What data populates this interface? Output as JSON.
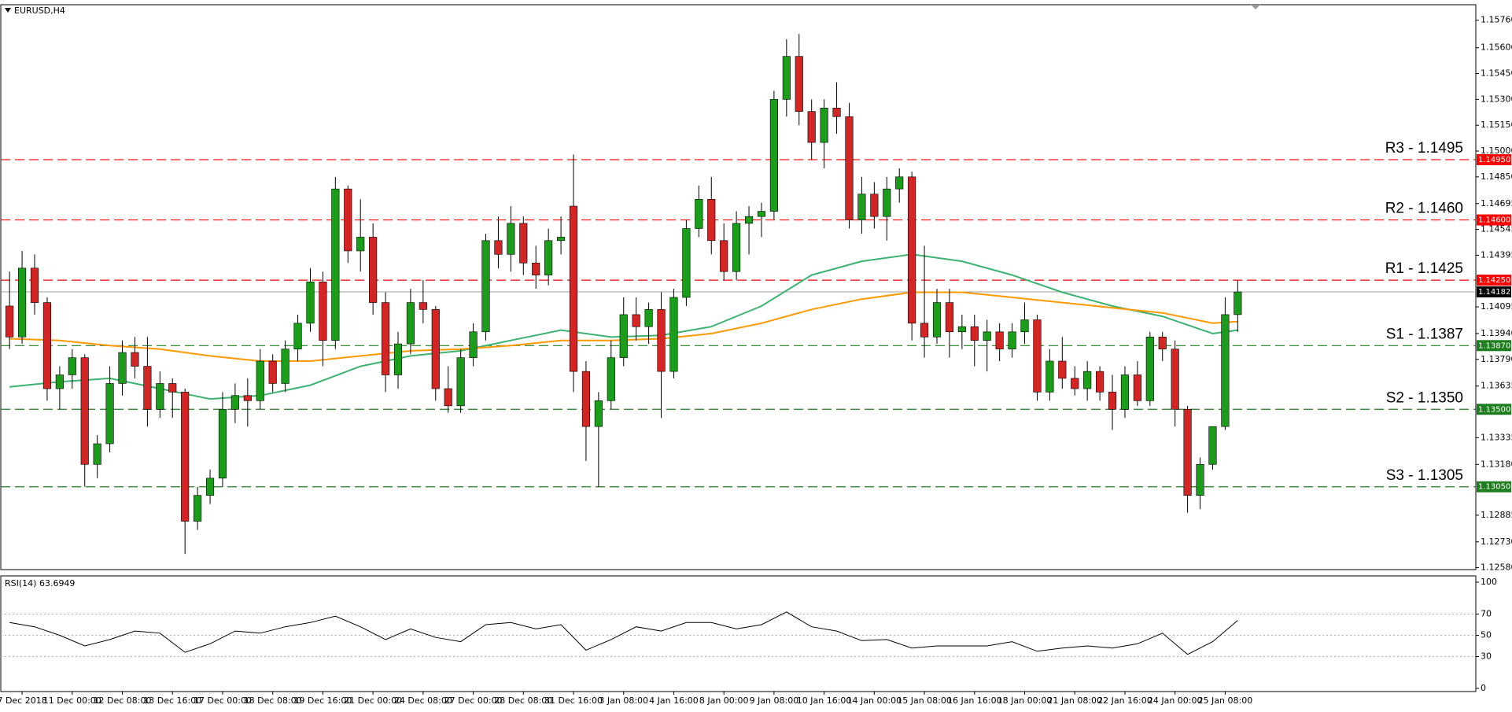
{
  "chart_data": [
    {
      "type": "candlestick",
      "title": "EURUSD,H4",
      "up_color": "#1a9e1a",
      "down_color": "#d42424",
      "wick_color": "#000000",
      "xlim": [
        -0.7,
        117
      ],
      "xticks": [
        {
          "value": 1,
          "label": "7 Dec 2018"
        },
        {
          "value": 5,
          "label": "11 Dec 00:00"
        },
        {
          "value": 9,
          "label": "12 Dec 08:00"
        },
        {
          "value": 13,
          "label": "13 Dec 16:00"
        },
        {
          "value": 17,
          "label": "17 Dec 00:00"
        },
        {
          "value": 21,
          "label": "18 Dec 08:00"
        },
        {
          "value": 25,
          "label": "19 Dec 16:00"
        },
        {
          "value": 29,
          "label": "21 Dec 00:00"
        },
        {
          "value": 33,
          "label": "24 Dec 08:00"
        },
        {
          "value": 37,
          "label": "27 Dec 00:00"
        },
        {
          "value": 41,
          "label": "28 Dec 08:00"
        },
        {
          "value": 45,
          "label": "31 Dec 16:00"
        },
        {
          "value": 49,
          "label": "3 Jan 08:00"
        },
        {
          "value": 53,
          "label": "4 Jan 16:00"
        },
        {
          "value": 57,
          "label": "8 Jan 00:00"
        },
        {
          "value": 61,
          "label": "9 Jan 08:00"
        },
        {
          "value": 65,
          "label": "10 Jan 16:00"
        },
        {
          "value": 69,
          "label": "14 Jan 00:00"
        },
        {
          "value": 73,
          "label": "15 Jan 08:00"
        },
        {
          "value": 77,
          "label": "16 Jan 16:00"
        },
        {
          "value": 81,
          "label": "18 Jan 00:00"
        },
        {
          "value": 85,
          "label": "21 Jan 08:00"
        },
        {
          "value": 89,
          "label": "22 Jan 16:00"
        },
        {
          "value": 93,
          "label": "24 Jan 00:00"
        },
        {
          "value": 97,
          "label": "25 Jan 08:00"
        }
      ],
      "ylim": [
        1.12569,
        1.1585
      ],
      "yticks": [
        {
          "value": 1.1576,
          "label": "1.15760"
        },
        {
          "value": 1.156,
          "label": "1.15600"
        },
        {
          "value": 1.1545,
          "label": "1.15450"
        },
        {
          "value": 1.153,
          "label": "1.15300"
        },
        {
          "value": 1.1515,
          "label": "1.15150"
        },
        {
          "value": 1.15,
          "label": "1.15000"
        },
        {
          "value": 1.1485,
          "label": "1.14850"
        },
        {
          "value": 1.14695,
          "label": "1.14695"
        },
        {
          "value": 1.14545,
          "label": "1.14545"
        },
        {
          "value": 1.14395,
          "label": "1.14395"
        },
        {
          "value": 1.14095,
          "label": "1.14095"
        },
        {
          "value": 1.1394,
          "label": "1.13940"
        },
        {
          "value": 1.1379,
          "label": "1.13790"
        },
        {
          "value": 1.13635,
          "label": "1.13635"
        },
        {
          "value": 1.13335,
          "label": "1.13335"
        },
        {
          "value": 1.1318,
          "label": "1.13180"
        },
        {
          "value": 1.12885,
          "label": "1.12885"
        },
        {
          "value": 1.1273,
          "label": "1.12730"
        },
        {
          "value": 1.1258,
          "label": "1.12580"
        }
      ],
      "open": [
        1.141,
        1.1392,
        1.1432,
        1.1412,
        1.1362,
        1.137,
        1.138,
        1.1318,
        1.133,
        1.1365,
        1.1383,
        1.1375,
        1.135,
        1.1365,
        1.136,
        1.1285,
        1.13,
        1.131,
        1.135,
        1.1358,
        1.1355,
        1.1378,
        1.1365,
        1.1385,
        1.14,
        1.1424,
        1.139,
        1.1478,
        1.1442,
        1.145,
        1.1412,
        1.137,
        1.1388,
        1.1412,
        1.1408,
        1.1362,
        1.1352,
        1.138,
        1.1395,
        1.1448,
        1.144,
        1.1458,
        1.1435,
        1.1428,
        1.1448,
        1.1468,
        1.1372,
        1.134,
        1.1355,
        1.138,
        1.1405,
        1.1398,
        1.1408,
        1.1372,
        1.1415,
        1.1455,
        1.1472,
        1.1448,
        1.143,
        1.1458,
        1.1462,
        1.1465,
        1.153,
        1.1555,
        1.1523,
        1.1505,
        1.1525,
        1.152,
        1.146,
        1.1475,
        1.1462,
        1.1478,
        1.1485,
        1.14,
        1.1392,
        1.1412,
        1.1395,
        1.1398,
        1.139,
        1.1395,
        1.1385,
        1.1395,
        1.1402,
        1.136,
        1.1378,
        1.1368,
        1.1362,
        1.1372,
        1.136,
        1.135,
        1.137,
        1.1355,
        1.1392,
        1.1385,
        1.135,
        1.13,
        1.1318,
        1.134,
        1.1405
      ],
      "high": [
        1.143,
        1.1442,
        1.144,
        1.1415,
        1.1375,
        1.1385,
        1.1382,
        1.1335,
        1.1375,
        1.139,
        1.1392,
        1.1392,
        1.1372,
        1.1368,
        1.1362,
        1.1305,
        1.1315,
        1.136,
        1.1365,
        1.1368,
        1.1385,
        1.1382,
        1.139,
        1.1405,
        1.1432,
        1.143,
        1.1485,
        1.148,
        1.1472,
        1.1458,
        1.1418,
        1.1395,
        1.142,
        1.1425,
        1.141,
        1.1375,
        1.1385,
        1.14,
        1.1452,
        1.1462,
        1.1468,
        1.1462,
        1.1445,
        1.1455,
        1.1462,
        1.1498,
        1.1378,
        1.136,
        1.139,
        1.1415,
        1.1415,
        1.1412,
        1.1418,
        1.142,
        1.146,
        1.148,
        1.1485,
        1.1458,
        1.1465,
        1.1468,
        1.147,
        1.1535,
        1.1565,
        1.1568,
        1.153,
        1.153,
        1.154,
        1.1528,
        1.1485,
        1.1482,
        1.1485,
        1.149,
        1.1488,
        1.1445,
        1.142,
        1.142,
        1.1405,
        1.1405,
        1.1402,
        1.14,
        1.14,
        1.1412,
        1.1405,
        1.1385,
        1.1392,
        1.1375,
        1.1378,
        1.1375,
        1.137,
        1.1375,
        1.1378,
        1.1395,
        1.1395,
        1.139,
        1.1352,
        1.1322,
        1.134,
        1.1415,
        1.1425
      ],
      "low": [
        1.1385,
        1.1388,
        1.1405,
        1.1355,
        1.135,
        1.1362,
        1.1305,
        1.131,
        1.1325,
        1.1358,
        1.1368,
        1.134,
        1.1345,
        1.1345,
        1.1266,
        1.128,
        1.1295,
        1.1305,
        1.1342,
        1.134,
        1.135,
        1.136,
        1.136,
        1.1378,
        1.1395,
        1.1375,
        1.1385,
        1.1435,
        1.143,
        1.1405,
        1.136,
        1.1362,
        1.1382,
        1.14,
        1.1355,
        1.1348,
        1.1348,
        1.1375,
        1.139,
        1.1432,
        1.143,
        1.1428,
        1.142,
        1.1422,
        1.144,
        1.136,
        1.132,
        1.1305,
        1.135,
        1.1375,
        1.139,
        1.1388,
        1.1345,
        1.1368,
        1.141,
        1.145,
        1.144,
        1.1425,
        1.1425,
        1.144,
        1.145,
        1.146,
        1.152,
        1.1515,
        1.1495,
        1.149,
        1.151,
        1.1455,
        1.1452,
        1.1455,
        1.1448,
        1.147,
        1.139,
        1.138,
        1.1388,
        1.138,
        1.1385,
        1.1375,
        1.1372,
        1.1378,
        1.138,
        1.1388,
        1.1355,
        1.1355,
        1.1362,
        1.1358,
        1.1355,
        1.1355,
        1.1338,
        1.1345,
        1.1352,
        1.1352,
        1.1378,
        1.134,
        1.129,
        1.1292,
        1.1315,
        1.1338,
        1.1395
      ],
      "close": [
        1.1392,
        1.1432,
        1.1412,
        1.1362,
        1.137,
        1.138,
        1.1318,
        1.133,
        1.1365,
        1.1383,
        1.1375,
        1.135,
        1.1365,
        1.136,
        1.1285,
        1.13,
        1.131,
        1.135,
        1.1358,
        1.1355,
        1.1378,
        1.1365,
        1.1385,
        1.14,
        1.1424,
        1.139,
        1.1478,
        1.1442,
        1.145,
        1.1412,
        1.137,
        1.1388,
        1.1412,
        1.1408,
        1.1362,
        1.1352,
        1.138,
        1.1395,
        1.1448,
        1.144,
        1.1458,
        1.1435,
        1.1428,
        1.1448,
        1.145,
        1.1372,
        1.134,
        1.1355,
        1.138,
        1.1405,
        1.1398,
        1.1408,
        1.1372,
        1.1415,
        1.1455,
        1.1472,
        1.1448,
        1.143,
        1.1458,
        1.1462,
        1.1465,
        1.153,
        1.1555,
        1.1523,
        1.1505,
        1.1525,
        1.152,
        1.146,
        1.1475,
        1.1462,
        1.1478,
        1.1485,
        1.14,
        1.1392,
        1.1412,
        1.1395,
        1.1398,
        1.139,
        1.1395,
        1.1385,
        1.1395,
        1.1402,
        1.136,
        1.1378,
        1.1368,
        1.1362,
        1.1372,
        1.136,
        1.135,
        1.137,
        1.1355,
        1.1392,
        1.1385,
        1.135,
        1.13,
        1.1318,
        1.134,
        1.1405,
        1.14182
      ],
      "overlays": [
        {
          "color": "#3cb371",
          "x": [
            0,
            4,
            8,
            12,
            16,
            20,
            24,
            28,
            32,
            36,
            40,
            44,
            48,
            52,
            56,
            60,
            64,
            68,
            72,
            76,
            80,
            84,
            88,
            92,
            96,
            98
          ],
          "values": [
            1.1363,
            1.1366,
            1.1368,
            1.1362,
            1.1356,
            1.1358,
            1.1364,
            1.1375,
            1.1381,
            1.1384,
            1.139,
            1.1396,
            1.1392,
            1.1393,
            1.1398,
            1.141,
            1.1428,
            1.1436,
            1.144,
            1.1436,
            1.1428,
            1.1418,
            1.141,
            1.1404,
            1.1394,
            1.1396
          ]
        },
        {
          "color": "#ff9900",
          "x": [
            0,
            4,
            8,
            12,
            16,
            20,
            24,
            28,
            32,
            36,
            40,
            44,
            48,
            52,
            56,
            60,
            64,
            68,
            72,
            76,
            80,
            84,
            88,
            92,
            96,
            98
          ],
          "values": [
            1.1391,
            1.139,
            1.1387,
            1.1385,
            1.1381,
            1.1378,
            1.1378,
            1.1381,
            1.1384,
            1.1385,
            1.1387,
            1.139,
            1.139,
            1.1391,
            1.1394,
            1.14,
            1.1408,
            1.1414,
            1.1418,
            1.1418,
            1.1415,
            1.1412,
            1.1409,
            1.1406,
            1.14,
            1.1401
          ]
        }
      ],
      "current_price": {
        "value": 1.14182,
        "label": "1.14182"
      },
      "levels": [
        {
          "name": "R3 - 1.1495",
          "value": 1.1495,
          "label": "1.14950",
          "color": "#ff0000"
        },
        {
          "name": "R2 - 1.1460",
          "value": 1.146,
          "label": "1.14600",
          "color": "#ff0000"
        },
        {
          "name": "R1 - 1.1425",
          "value": 1.1425,
          "label": "1.14250",
          "color": "#ff0000"
        },
        {
          "name": "S1 - 1.1387",
          "value": 1.1387,
          "label": "1.13870",
          "color": "#1e7d1e"
        },
        {
          "name": "S2 - 1.1350",
          "value": 1.135,
          "label": "1.13500",
          "color": "#1e7d1e"
        },
        {
          "name": "S3 - 1.1305",
          "value": 1.1305,
          "label": "1.13050",
          "color": "#1e7d1e"
        }
      ]
    },
    {
      "type": "line",
      "title": "RSI(14) 63.6949",
      "color": "#000000",
      "xlim": [
        -0.7,
        117
      ],
      "ylim": [
        0,
        100
      ],
      "yticks": [
        0,
        30,
        50,
        70,
        100
      ],
      "grid": true,
      "x": [
        0,
        2,
        4,
        6,
        8,
        10,
        12,
        14,
        16,
        18,
        20,
        22,
        24,
        26,
        28,
        30,
        32,
        34,
        36,
        38,
        40,
        42,
        44,
        46,
        48,
        50,
        52,
        54,
        56,
        58,
        60,
        62,
        64,
        66,
        68,
        70,
        72,
        74,
        76,
        78,
        80,
        82,
        84,
        86,
        88,
        90,
        92,
        94,
        96,
        98
      ],
      "values": [
        62,
        58,
        50,
        40,
        46,
        54,
        52,
        34,
        42,
        54,
        52,
        58,
        62,
        68,
        58,
        46,
        56,
        48,
        44,
        60,
        62,
        56,
        60,
        36,
        46,
        58,
        54,
        62,
        62,
        56,
        60,
        72,
        58,
        54,
        45,
        46,
        38,
        40,
        40,
        40,
        44,
        35,
        38,
        40,
        38,
        42,
        52,
        32,
        44,
        64
      ]
    }
  ]
}
